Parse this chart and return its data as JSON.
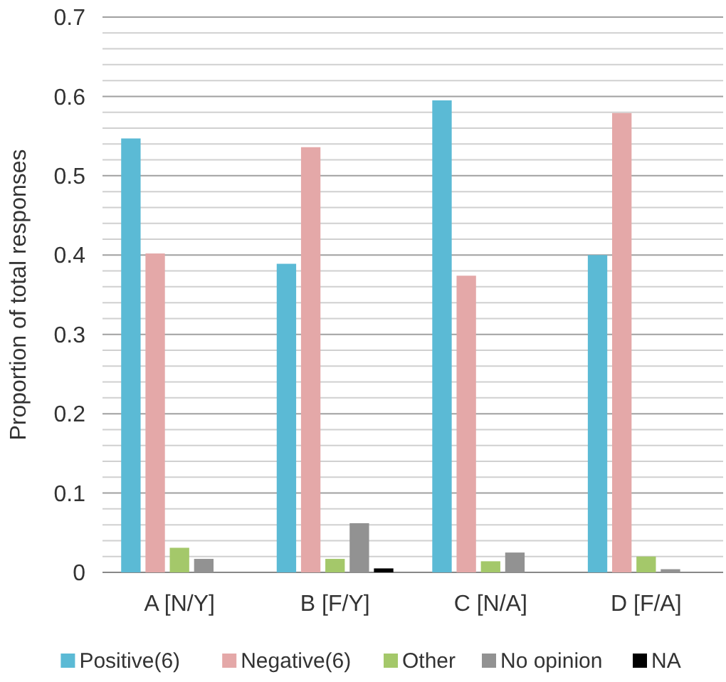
{
  "chart_data": {
    "type": "bar",
    "ylabel": "Proportion of total responses",
    "categories": [
      "A [N/Y]",
      "B [F/Y]",
      "C [N/A]",
      "D [F/A]"
    ],
    "series": [
      {
        "name": "Positive(6)",
        "color": "#5bbad5",
        "values": [
          0.547,
          0.389,
          0.595,
          0.4
        ]
      },
      {
        "name": "Negative(6)",
        "color": "#e4a8a8",
        "values": [
          0.402,
          0.536,
          0.374,
          0.579
        ]
      },
      {
        "name": "Other",
        "color": "#a4c86a",
        "values": [
          0.031,
          0.017,
          0.014,
          0.02
        ]
      },
      {
        "name": "No opinion",
        "color": "#929292",
        "values": [
          0.017,
          0.062,
          0.025,
          0.004
        ]
      },
      {
        "name": "NA",
        "color": "#000000",
        "values": [
          0,
          0.005,
          0,
          0
        ]
      }
    ],
    "ylim": [
      0,
      0.7
    ],
    "yticks": [
      0,
      {
        "value": 0.02,
        "label": null
      },
      {
        "value": 0.04,
        "label": null
      },
      {
        "value": 0.06,
        "label": null
      },
      {
        "value": 0.08,
        "label": null
      },
      0.1,
      {
        "value": 0.12,
        "label": null
      },
      {
        "value": 0.14,
        "label": null
      },
      {
        "value": 0.16,
        "label": null
      },
      {
        "value": 0.18,
        "label": null
      },
      0.2,
      {
        "value": 0.22,
        "label": null
      },
      {
        "value": 0.24,
        "label": null
      },
      {
        "value": 0.26,
        "label": null
      },
      {
        "value": 0.28,
        "label": null
      },
      0.3,
      {
        "value": 0.32,
        "label": null
      },
      {
        "value": 0.34,
        "label": null
      },
      {
        "value": 0.36,
        "label": null
      },
      {
        "value": 0.38,
        "label": null
      },
      0.4,
      {
        "value": 0.42,
        "label": null
      },
      {
        "value": 0.44,
        "label": null
      },
      {
        "value": 0.46,
        "label": null
      },
      {
        "value": 0.48,
        "label": null
      },
      0.5,
      {
        "value": 0.52,
        "label": null
      },
      {
        "value": 0.54,
        "label": null
      },
      {
        "value": 0.56,
        "label": null
      },
      {
        "value": 0.58,
        "label": null
      },
      0.6,
      {
        "value": 0.62,
        "label": null
      },
      {
        "value": 0.64,
        "label": null
      },
      {
        "value": 0.66,
        "label": null
      },
      {
        "value": 0.68,
        "label": null
      },
      0.7
    ],
    "grid": "y",
    "legend": "bottom"
  }
}
